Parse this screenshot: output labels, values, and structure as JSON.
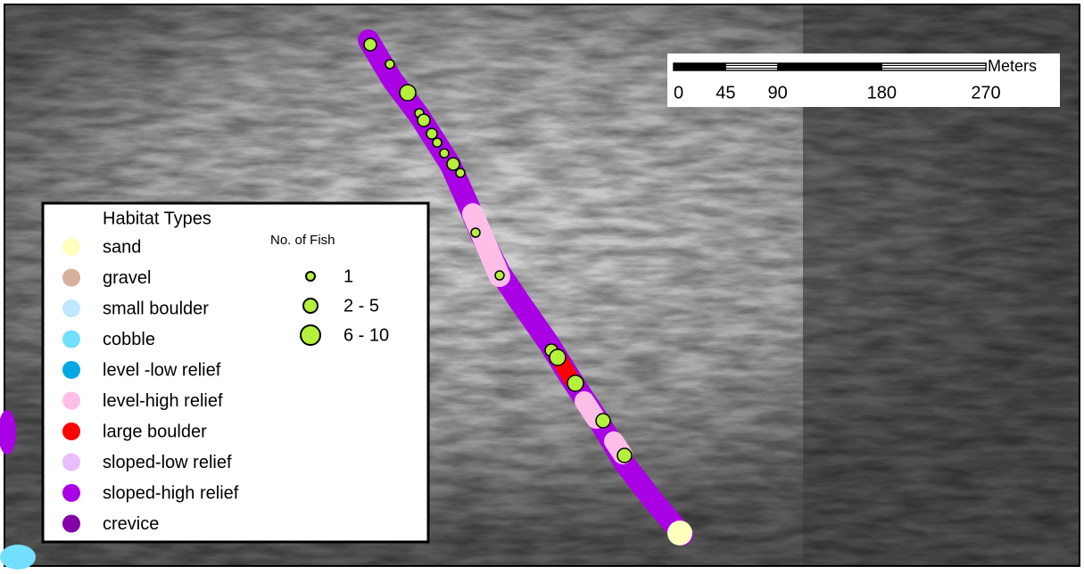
{
  "legend": {
    "habitat_title": "Habitat Types",
    "habitat_types": [
      {
        "label": "sand",
        "color": "#ffffbe"
      },
      {
        "label": "gravel",
        "color": "#d7b09e"
      },
      {
        "label": "small boulder",
        "color": "#bee8ff"
      },
      {
        "label": "cobble",
        "color": "#73dfff"
      },
      {
        "label": "level -low relief",
        "color": "#00a9e6"
      },
      {
        "label": "level-high relief",
        "color": "#ffbee8"
      },
      {
        "label": "large boulder",
        "color": "#ff0000"
      },
      {
        "label": "sloped-low relief",
        "color": "#e8beff"
      },
      {
        "label": "sloped-high relief",
        "color": "#a900e6"
      },
      {
        "label": "crevice",
        "color": "#8400a8"
      }
    ],
    "fish_title": "No. of Fish",
    "fish_classes": [
      "1",
      "2 - 5",
      "6 - 10"
    ]
  },
  "scale_bar": {
    "unit": "Meters",
    "ticks": [
      0,
      45,
      90,
      180,
      270
    ]
  }
}
